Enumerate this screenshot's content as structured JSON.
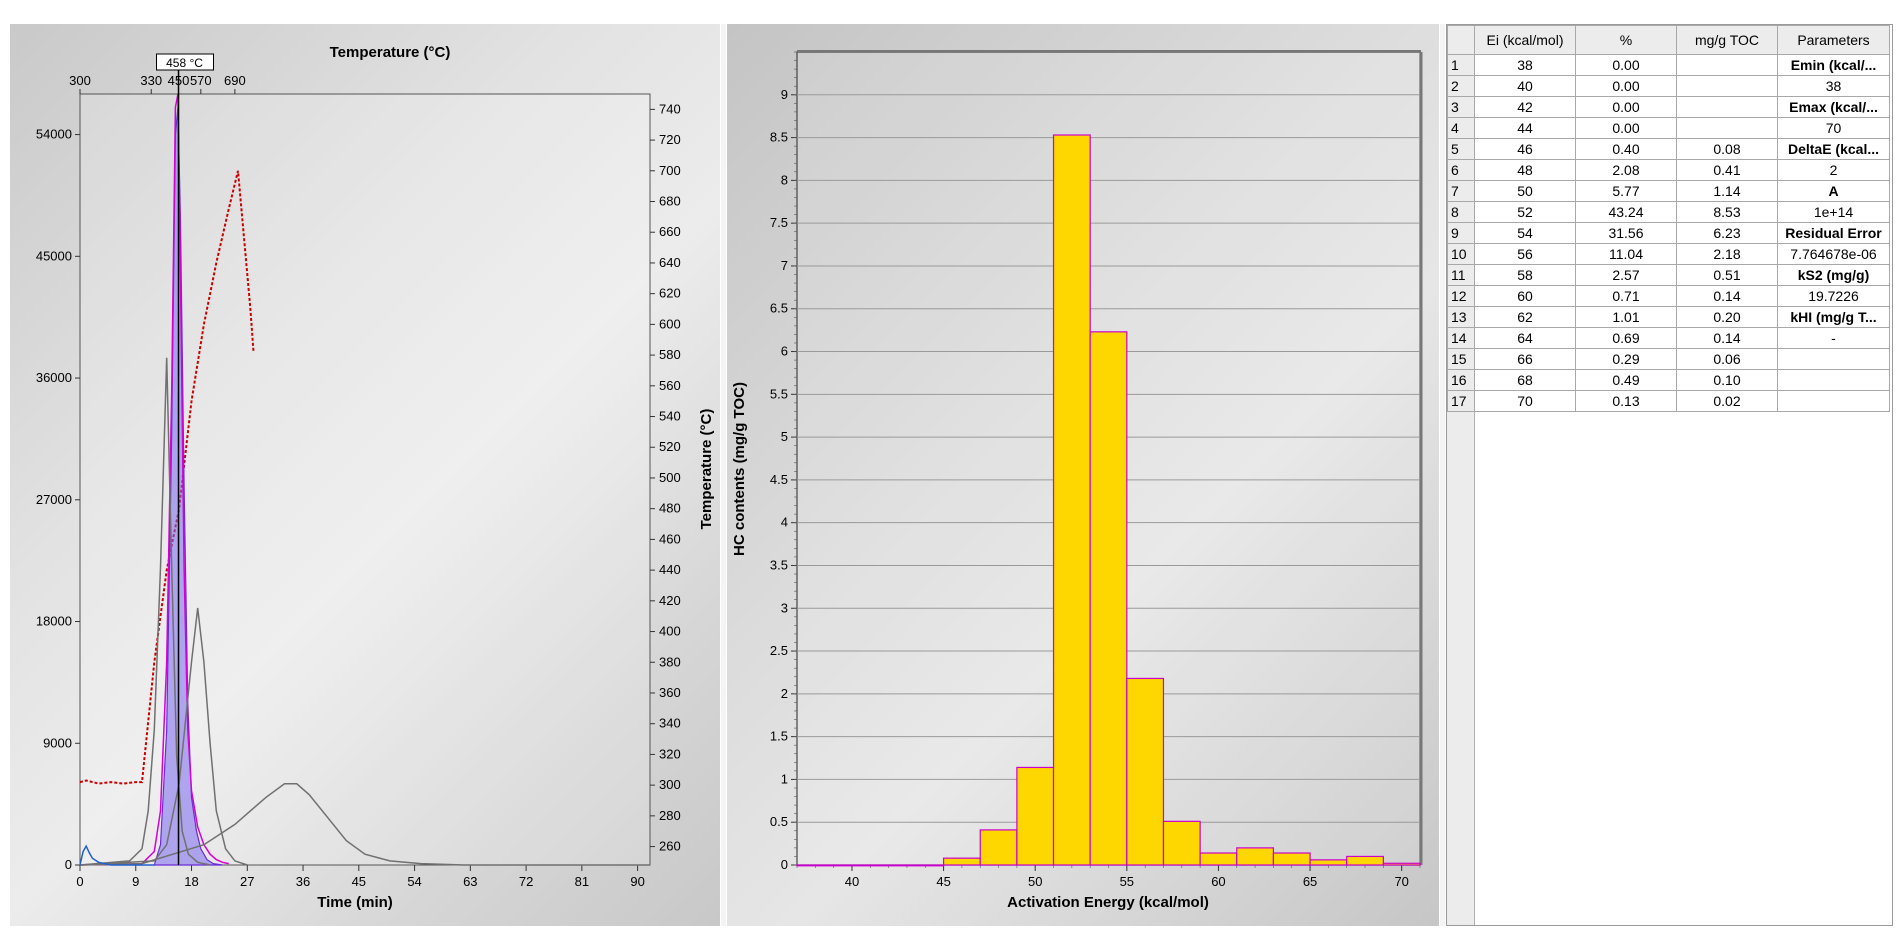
{
  "pyrogram": {
    "top_axis_title": "Temperature (°C)",
    "top_ticks": [
      "300",
      "330",
      "450",
      "570",
      "690"
    ],
    "marker_label": "458 °C",
    "xlabel": "Time (min)",
    "x_ticks": [
      "0",
      "9",
      "18",
      "27",
      "36",
      "45",
      "54",
      "63",
      "72",
      "81",
      "90"
    ],
    "left_ticks": [
      "0",
      "9000",
      "18000",
      "27000",
      "36000",
      "45000",
      "54000"
    ],
    "right_axis_title": "Temperature (°C)",
    "right_ticks": [
      "260",
      "280",
      "300",
      "320",
      "340",
      "360",
      "380",
      "400",
      "420",
      "440",
      "460",
      "480",
      "500",
      "520",
      "540",
      "560",
      "580",
      "600",
      "620",
      "640",
      "660",
      "680",
      "700",
      "720",
      "740"
    ]
  },
  "chart_data": [
    {
      "type": "line",
      "title": "",
      "xlabel": "Time (min)",
      "ylabel": "",
      "y2label": "Temperature (°C)",
      "x_top_label": "Temperature (°C)",
      "xlim": [
        0,
        92
      ],
      "ylim": [
        0,
        57000
      ],
      "y2lim": [
        248,
        750
      ],
      "marker": {
        "x_min": 15.9,
        "label": "458 °C"
      },
      "series": [
        {
          "color": "#cc0000",
          "style": "dotted",
          "axis": "right",
          "points": [
            [
              0,
              302
            ],
            [
              1,
              303
            ],
            [
              3,
              301
            ],
            [
              5,
              302
            ],
            [
              7,
              301
            ],
            [
              9,
              302
            ],
            [
              10,
              302
            ],
            [
              12,
              380
            ],
            [
              14,
              440
            ],
            [
              16,
              480
            ],
            [
              18,
              550
            ],
            [
              20,
              600
            ],
            [
              22,
              640
            ],
            [
              24,
              675
            ],
            [
              25.5,
              700
            ],
            [
              26.5,
              655
            ],
            [
              27.5,
              610
            ],
            [
              28,
              582
            ]
          ]
        },
        {
          "color": "#6b2bd8",
          "style": "filled",
          "axis": "left",
          "points": [
            [
              12,
              0
            ],
            [
              13,
              1500
            ],
            [
              14,
              10000
            ],
            [
              14.8,
              32000
            ],
            [
              15.4,
              54000
            ],
            [
              15.8,
              56000
            ],
            [
              16.2,
              48000
            ],
            [
              16.8,
              28000
            ],
            [
              17.4,
              12000
            ],
            [
              18,
              5000
            ],
            [
              18.8,
              2500
            ],
            [
              19.5,
              1200
            ],
            [
              20.5,
              400
            ],
            [
              21.5,
              100
            ],
            [
              23,
              0
            ]
          ]
        },
        {
          "color": "#d400d4",
          "style": "solid",
          "axis": "left",
          "points": [
            [
              0,
              0
            ],
            [
              10,
              100
            ],
            [
              12,
              1000
            ],
            [
              13,
              4000
            ],
            [
              14,
              15000
            ],
            [
              14.8,
              35000
            ],
            [
              15.4,
              56000
            ],
            [
              15.8,
              57000
            ],
            [
              16.2,
              44000
            ],
            [
              16.8,
              22000
            ],
            [
              17.4,
              10000
            ],
            [
              18,
              5500
            ],
            [
              19,
              2800
            ],
            [
              20,
              1500
            ],
            [
              21,
              800
            ],
            [
              22,
              400
            ],
            [
              23,
              200
            ],
            [
              24,
              100
            ]
          ]
        },
        {
          "color": "#707070",
          "style": "solid",
          "axis": "left",
          "points": [
            [
              0,
              0
            ],
            [
              8,
              300
            ],
            [
              10,
              1200
            ],
            [
              11,
              4000
            ],
            [
              12,
              10000
            ],
            [
              13,
              22000
            ],
            [
              14,
              37500
            ],
            [
              14.8,
              22000
            ],
            [
              15.6,
              8000
            ],
            [
              16.5,
              2500
            ],
            [
              17.5,
              800
            ],
            [
              19,
              200
            ],
            [
              21,
              0
            ]
          ]
        },
        {
          "color": "#707070",
          "style": "solid",
          "axis": "left",
          "points": [
            [
              0,
              0
            ],
            [
              12,
              300
            ],
            [
              14,
              1500
            ],
            [
              16,
              6000
            ],
            [
              18,
              15000
            ],
            [
              19,
              19000
            ],
            [
              20,
              15000
            ],
            [
              21,
              9000
            ],
            [
              22,
              4000
            ],
            [
              23.5,
              1200
            ],
            [
              25,
              300
            ],
            [
              27,
              0
            ]
          ]
        },
        {
          "color": "#707070",
          "style": "solid",
          "axis": "left",
          "points": [
            [
              0,
              0
            ],
            [
              10,
              100
            ],
            [
              20,
              1500
            ],
            [
              25,
              3000
            ],
            [
              30,
              5000
            ],
            [
              33,
              6000
            ],
            [
              35,
              6000
            ],
            [
              37,
              5200
            ],
            [
              40,
              3500
            ],
            [
              43,
              1800
            ],
            [
              46,
              800
            ],
            [
              50,
              300
            ],
            [
              55,
              100
            ],
            [
              62,
              0
            ],
            [
              92,
              0
            ]
          ]
        },
        {
          "color": "#1f5fd0",
          "style": "solid",
          "axis": "left",
          "points": [
            [
              0,
              0
            ],
            [
              0.5,
              1000
            ],
            [
              1,
              1400
            ],
            [
              1.5,
              900
            ],
            [
              2,
              500
            ],
            [
              3,
              200
            ],
            [
              5,
              0
            ],
            [
              12,
              0
            ]
          ]
        }
      ]
    },
    {
      "type": "bar",
      "title": "",
      "xlabel": "Activation Energy (kcal/mol)",
      "ylabel": "HC contents (mg/g TOC)",
      "xlim": [
        37,
        71
      ],
      "ylim": [
        0,
        9.5
      ],
      "x_ticks": [
        "40",
        "45",
        "50",
        "55",
        "60",
        "65",
        "70"
      ],
      "y_ticks": [
        "0",
        "0.5",
        "1",
        "1.5",
        "2",
        "2.5",
        "3",
        "3.5",
        "4",
        "4.5",
        "5",
        "5.5",
        "6",
        "6.5",
        "7",
        "7.5",
        "8",
        "8.5",
        "9"
      ],
      "bar_width": 2,
      "fill_color": "#ffd700",
      "edge_color": "#cc00cc",
      "categories": [
        38,
        40,
        42,
        44,
        46,
        48,
        50,
        52,
        54,
        56,
        58,
        60,
        62,
        64,
        66,
        68,
        70
      ],
      "values": [
        0,
        0,
        0,
        0,
        0.08,
        0.41,
        1.14,
        8.53,
        6.23,
        2.18,
        0.51,
        0.14,
        0.2,
        0.14,
        0.06,
        0.1,
        0.02
      ]
    }
  ],
  "table": {
    "columns": [
      "Ei (kcal/mol)",
      "%",
      "mg/g TOC",
      "Parameters"
    ],
    "rows": [
      {
        "n": "1",
        "ei": "38",
        "pct": "0.00",
        "mg": "",
        "param": "Emin (kcal/...",
        "bold": true
      },
      {
        "n": "2",
        "ei": "40",
        "pct": "0.00",
        "mg": "",
        "param": "38",
        "bold": false
      },
      {
        "n": "3",
        "ei": "42",
        "pct": "0.00",
        "mg": "",
        "param": "Emax (kcal/...",
        "bold": true
      },
      {
        "n": "4",
        "ei": "44",
        "pct": "0.00",
        "mg": "",
        "param": "70",
        "bold": false
      },
      {
        "n": "5",
        "ei": "46",
        "pct": "0.40",
        "mg": "0.08",
        "param": "DeltaE (kcal...",
        "bold": true
      },
      {
        "n": "6",
        "ei": "48",
        "pct": "2.08",
        "mg": "0.41",
        "param": "2",
        "bold": false
      },
      {
        "n": "7",
        "ei": "50",
        "pct": "5.77",
        "mg": "1.14",
        "param": "A",
        "bold": true
      },
      {
        "n": "8",
        "ei": "52",
        "pct": "43.24",
        "mg": "8.53",
        "param": "1e+14",
        "bold": false
      },
      {
        "n": "9",
        "ei": "54",
        "pct": "31.56",
        "mg": "6.23",
        "param": "Residual Error",
        "bold": true
      },
      {
        "n": "10",
        "ei": "56",
        "pct": "11.04",
        "mg": "2.18",
        "param": "7.764678e-06",
        "bold": false
      },
      {
        "n": "11",
        "ei": "58",
        "pct": "2.57",
        "mg": "0.51",
        "param": "kS2 (mg/g)",
        "bold": true
      },
      {
        "n": "12",
        "ei": "60",
        "pct": "0.71",
        "mg": "0.14",
        "param": "19.7226",
        "bold": false
      },
      {
        "n": "13",
        "ei": "62",
        "pct": "1.01",
        "mg": "0.20",
        "param": "kHI (mg/g T...",
        "bold": true
      },
      {
        "n": "14",
        "ei": "64",
        "pct": "0.69",
        "mg": "0.14",
        "param": "-",
        "bold": false
      },
      {
        "n": "15",
        "ei": "66",
        "pct": "0.29",
        "mg": "0.06",
        "param": "",
        "bold": false
      },
      {
        "n": "16",
        "ei": "68",
        "pct": "0.49",
        "mg": "0.10",
        "param": "",
        "bold": false
      },
      {
        "n": "17",
        "ei": "70",
        "pct": "0.13",
        "mg": "0.02",
        "param": "",
        "bold": false
      }
    ]
  }
}
